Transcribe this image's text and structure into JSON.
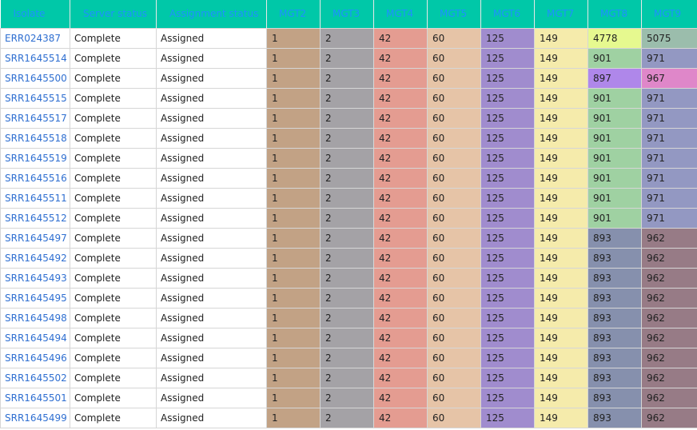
{
  "table": {
    "headers": [
      "Isolate",
      "Server status",
      "Assignment status",
      "MGT2",
      "MGT3",
      "MGT4",
      "MGT5",
      "MGT6",
      "MGT7",
      "MGT8",
      "MGT9"
    ],
    "rows": [
      {
        "isolate": "ERR024387",
        "server": "Complete",
        "assignment": "Assigned",
        "mgt": [
          "1",
          "2",
          "42",
          "60",
          "125",
          "149",
          "4778",
          "5075"
        ],
        "colors": [
          "#c2a285",
          "#a4a2a6",
          "#e49c91",
          "#e6c4a7",
          "#a08cce",
          "#f5ebab",
          "#e6f98f",
          "#9bbdac"
        ]
      },
      {
        "isolate": "SRR1645514",
        "server": "Complete",
        "assignment": "Assigned",
        "mgt": [
          "1",
          "2",
          "42",
          "60",
          "125",
          "149",
          "901",
          "971"
        ],
        "colors": [
          "#c2a285",
          "#a4a2a6",
          "#e49c91",
          "#e6c4a7",
          "#a08cce",
          "#f5ebab",
          "#9fd1a2",
          "#9398c2"
        ]
      },
      {
        "isolate": "SRR1645500",
        "server": "Complete",
        "assignment": "Assigned",
        "mgt": [
          "1",
          "2",
          "42",
          "60",
          "125",
          "149",
          "897",
          "967"
        ],
        "colors": [
          "#c2a285",
          "#a4a2a6",
          "#e49c91",
          "#e6c4a7",
          "#a08cce",
          "#f5ebab",
          "#af87ea",
          "#df87c9"
        ]
      },
      {
        "isolate": "SRR1645515",
        "server": "Complete",
        "assignment": "Assigned",
        "mgt": [
          "1",
          "2",
          "42",
          "60",
          "125",
          "149",
          "901",
          "971"
        ],
        "colors": [
          "#c2a285",
          "#a4a2a6",
          "#e49c91",
          "#e6c4a7",
          "#a08cce",
          "#f5ebab",
          "#9fd1a2",
          "#9398c2"
        ]
      },
      {
        "isolate": "SRR1645517",
        "server": "Complete",
        "assignment": "Assigned",
        "mgt": [
          "1",
          "2",
          "42",
          "60",
          "125",
          "149",
          "901",
          "971"
        ],
        "colors": [
          "#c2a285",
          "#a4a2a6",
          "#e49c91",
          "#e6c4a7",
          "#a08cce",
          "#f5ebab",
          "#9fd1a2",
          "#9398c2"
        ]
      },
      {
        "isolate": "SRR1645518",
        "server": "Complete",
        "assignment": "Assigned",
        "mgt": [
          "1",
          "2",
          "42",
          "60",
          "125",
          "149",
          "901",
          "971"
        ],
        "colors": [
          "#c2a285",
          "#a4a2a6",
          "#e49c91",
          "#e6c4a7",
          "#a08cce",
          "#f5ebab",
          "#9fd1a2",
          "#9398c2"
        ]
      },
      {
        "isolate": "SRR1645519",
        "server": "Complete",
        "assignment": "Assigned",
        "mgt": [
          "1",
          "2",
          "42",
          "60",
          "125",
          "149",
          "901",
          "971"
        ],
        "colors": [
          "#c2a285",
          "#a4a2a6",
          "#e49c91",
          "#e6c4a7",
          "#a08cce",
          "#f5ebab",
          "#9fd1a2",
          "#9398c2"
        ]
      },
      {
        "isolate": "SRR1645516",
        "server": "Complete",
        "assignment": "Assigned",
        "mgt": [
          "1",
          "2",
          "42",
          "60",
          "125",
          "149",
          "901",
          "971"
        ],
        "colors": [
          "#c2a285",
          "#a4a2a6",
          "#e49c91",
          "#e6c4a7",
          "#a08cce",
          "#f5ebab",
          "#9fd1a2",
          "#9398c2"
        ]
      },
      {
        "isolate": "SRR1645511",
        "server": "Complete",
        "assignment": "Assigned",
        "mgt": [
          "1",
          "2",
          "42",
          "60",
          "125",
          "149",
          "901",
          "971"
        ],
        "colors": [
          "#c2a285",
          "#a4a2a6",
          "#e49c91",
          "#e6c4a7",
          "#a08cce",
          "#f5ebab",
          "#9fd1a2",
          "#9398c2"
        ]
      },
      {
        "isolate": "SRR1645512",
        "server": "Complete",
        "assignment": "Assigned",
        "mgt": [
          "1",
          "2",
          "42",
          "60",
          "125",
          "149",
          "901",
          "971"
        ],
        "colors": [
          "#c2a285",
          "#a4a2a6",
          "#e49c91",
          "#e6c4a7",
          "#a08cce",
          "#f5ebab",
          "#9fd1a2",
          "#9398c2"
        ]
      },
      {
        "isolate": "SRR1645497",
        "server": "Complete",
        "assignment": "Assigned",
        "mgt": [
          "1",
          "2",
          "42",
          "60",
          "125",
          "149",
          "893",
          "962"
        ],
        "colors": [
          "#c2a285",
          "#a4a2a6",
          "#e49c91",
          "#e6c4a7",
          "#a08cce",
          "#f5ebab",
          "#8690ad",
          "#977b86"
        ]
      },
      {
        "isolate": "SRR1645492",
        "server": "Complete",
        "assignment": "Assigned",
        "mgt": [
          "1",
          "2",
          "42",
          "60",
          "125",
          "149",
          "893",
          "962"
        ],
        "colors": [
          "#c2a285",
          "#a4a2a6",
          "#e49c91",
          "#e6c4a7",
          "#a08cce",
          "#f5ebab",
          "#8690ad",
          "#977b86"
        ]
      },
      {
        "isolate": "SRR1645493",
        "server": "Complete",
        "assignment": "Assigned",
        "mgt": [
          "1",
          "2",
          "42",
          "60",
          "125",
          "149",
          "893",
          "962"
        ],
        "colors": [
          "#c2a285",
          "#a4a2a6",
          "#e49c91",
          "#e6c4a7",
          "#a08cce",
          "#f5ebab",
          "#8690ad",
          "#977b86"
        ]
      },
      {
        "isolate": "SRR1645495",
        "server": "Complete",
        "assignment": "Assigned",
        "mgt": [
          "1",
          "2",
          "42",
          "60",
          "125",
          "149",
          "893",
          "962"
        ],
        "colors": [
          "#c2a285",
          "#a4a2a6",
          "#e49c91",
          "#e6c4a7",
          "#a08cce",
          "#f5ebab",
          "#8690ad",
          "#977b86"
        ]
      },
      {
        "isolate": "SRR1645498",
        "server": "Complete",
        "assignment": "Assigned",
        "mgt": [
          "1",
          "2",
          "42",
          "60",
          "125",
          "149",
          "893",
          "962"
        ],
        "colors": [
          "#c2a285",
          "#a4a2a6",
          "#e49c91",
          "#e6c4a7",
          "#a08cce",
          "#f5ebab",
          "#8690ad",
          "#977b86"
        ]
      },
      {
        "isolate": "SRR1645494",
        "server": "Complete",
        "assignment": "Assigned",
        "mgt": [
          "1",
          "2",
          "42",
          "60",
          "125",
          "149",
          "893",
          "962"
        ],
        "colors": [
          "#c2a285",
          "#a4a2a6",
          "#e49c91",
          "#e6c4a7",
          "#a08cce",
          "#f5ebab",
          "#8690ad",
          "#977b86"
        ]
      },
      {
        "isolate": "SRR1645496",
        "server": "Complete",
        "assignment": "Assigned",
        "mgt": [
          "1",
          "2",
          "42",
          "60",
          "125",
          "149",
          "893",
          "962"
        ],
        "colors": [
          "#c2a285",
          "#a4a2a6",
          "#e49c91",
          "#e6c4a7",
          "#a08cce",
          "#f5ebab",
          "#8690ad",
          "#977b86"
        ]
      },
      {
        "isolate": "SRR1645502",
        "server": "Complete",
        "assignment": "Assigned",
        "mgt": [
          "1",
          "2",
          "42",
          "60",
          "125",
          "149",
          "893",
          "962"
        ],
        "colors": [
          "#c2a285",
          "#a4a2a6",
          "#e49c91",
          "#e6c4a7",
          "#a08cce",
          "#f5ebab",
          "#8690ad",
          "#977b86"
        ]
      },
      {
        "isolate": "SRR1645501",
        "server": "Complete",
        "assignment": "Assigned",
        "mgt": [
          "1",
          "2",
          "42",
          "60",
          "125",
          "149",
          "893",
          "962"
        ],
        "colors": [
          "#c2a285",
          "#a4a2a6",
          "#e49c91",
          "#e6c4a7",
          "#a08cce",
          "#f5ebab",
          "#8690ad",
          "#977b86"
        ]
      },
      {
        "isolate": "SRR1645499",
        "server": "Complete",
        "assignment": "Assigned",
        "mgt": [
          "1",
          "2",
          "42",
          "60",
          "125",
          "149",
          "893",
          "962"
        ],
        "colors": [
          "#c2a285",
          "#a4a2a6",
          "#e49c91",
          "#e6c4a7",
          "#a08cce",
          "#f5ebab",
          "#8690ad",
          "#977b86"
        ]
      }
    ]
  }
}
